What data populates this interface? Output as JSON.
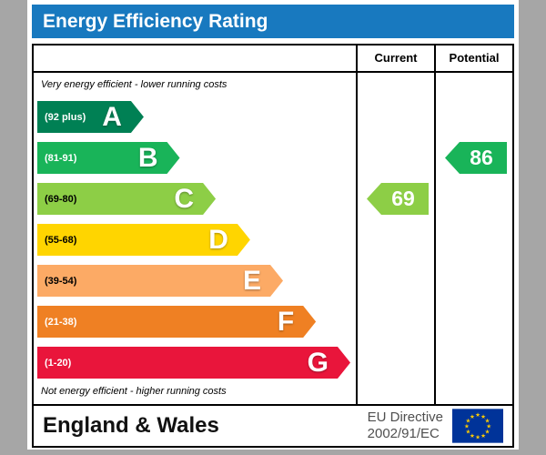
{
  "title": "Energy Efficiency Rating",
  "columns": {
    "current": "Current",
    "potential": "Potential"
  },
  "notes": {
    "top": "Very energy efficient - lower running costs",
    "bottom": "Not energy efficient - higher running costs"
  },
  "footer": {
    "region": "England & Wales",
    "directive_line1": "EU Directive",
    "directive_line2": "2002/91/EC",
    "flag_icon": "eu-flag-circle-of-12-stars",
    "flag_colors": {
      "field": "#003399",
      "stars": "#ffcc00"
    }
  },
  "chart_data": {
    "type": "bar",
    "title": "Energy Efficiency Rating",
    "orientation": "horizontal",
    "bands": [
      {
        "letter": "A",
        "range": "(92 plus)",
        "min": 92,
        "max": 100,
        "color": "#008054",
        "width_pct": 34,
        "text_color": "#ffffff"
      },
      {
        "letter": "B",
        "range": "(81-91)",
        "min": 81,
        "max": 91,
        "color": "#19b459",
        "width_pct": 45.5,
        "text_color": "#ffffff"
      },
      {
        "letter": "C",
        "range": "(69-80)",
        "min": 69,
        "max": 80,
        "color": "#8dce46",
        "width_pct": 57,
        "text_color": "#000000"
      },
      {
        "letter": "D",
        "range": "(55-68)",
        "min": 55,
        "max": 68,
        "color": "#ffd500",
        "width_pct": 68,
        "text_color": "#000000"
      },
      {
        "letter": "E",
        "range": "(39-54)",
        "min": 39,
        "max": 54,
        "color": "#fcaa65",
        "width_pct": 78.5,
        "text_color": "#000000"
      },
      {
        "letter": "F",
        "range": "(21-38)",
        "min": 21,
        "max": 38,
        "color": "#ef8023",
        "width_pct": 89,
        "text_color": "#ffffff"
      },
      {
        "letter": "G",
        "range": "(1-20)",
        "min": 1,
        "max": 20,
        "color": "#e9153b",
        "width_pct": 100,
        "text_color": "#ffffff"
      }
    ],
    "current": {
      "value": 69,
      "band": "C",
      "band_index": 2,
      "color": "#8dce46"
    },
    "potential": {
      "value": 86,
      "band": "B",
      "band_index": 1,
      "color": "#19b459"
    }
  }
}
